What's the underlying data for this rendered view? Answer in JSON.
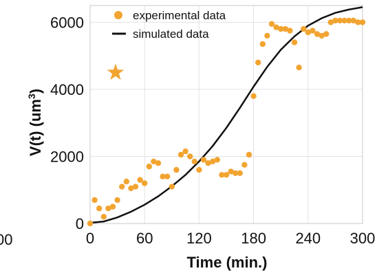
{
  "chart_data": {
    "type": "scatter",
    "xlabel": "Time (min.)",
    "ylabel": "V(t) (um",
    "ylabel_superscript": "3",
    "ylabel_close": ")",
    "xlim": [
      0,
      300
    ],
    "ylim": [
      0,
      6500
    ],
    "x_ticks": [
      0,
      60,
      120,
      180,
      240,
      300
    ],
    "y_ticks": [
      0,
      2000,
      4000,
      6000
    ],
    "grid": true,
    "legend_position": "top-right",
    "left_edge_fragment": "00",
    "colors": {
      "experimental": "#f2a431",
      "simulated": "#111111"
    },
    "series": [
      {
        "name": "experimental data",
        "kind": "points",
        "x": [
          0,
          5,
          10,
          15,
          20,
          25,
          30,
          35,
          40,
          45,
          50,
          55,
          60,
          65,
          70,
          75,
          80,
          85,
          90,
          95,
          100,
          105,
          110,
          115,
          120,
          125,
          130,
          135,
          140,
          145,
          150,
          155,
          160,
          165,
          170,
          175,
          180,
          185,
          190,
          195,
          200,
          205,
          210,
          215,
          220,
          225,
          230,
          235,
          240,
          245,
          250,
          255,
          260,
          265,
          270,
          275,
          280,
          285,
          290,
          295,
          300
        ],
        "y": [
          0,
          700,
          450,
          200,
          450,
          500,
          700,
          1100,
          1250,
          1050,
          1100,
          1300,
          1200,
          1700,
          1850,
          1800,
          1400,
          1400,
          1100,
          1600,
          2050,
          2150,
          2000,
          1850,
          1600,
          1900,
          1800,
          1850,
          1900,
          1450,
          1450,
          1550,
          1500,
          1500,
          1750,
          2050,
          3800,
          4800,
          5350,
          5600,
          5950,
          5850,
          5800,
          5800,
          5750,
          5400,
          4650,
          5800,
          5700,
          5750,
          5650,
          5600,
          5650,
          6000,
          6050,
          6050,
          6050,
          6050,
          6050,
          6000,
          6000
        ]
      },
      {
        "name": "simulated data",
        "kind": "line",
        "x": [
          0,
          15,
          30,
          45,
          60,
          75,
          90,
          105,
          120,
          135,
          150,
          165,
          180,
          195,
          210,
          225,
          240,
          255,
          270,
          285,
          300
        ],
        "y": [
          20,
          60,
          180,
          350,
          560,
          810,
          1110,
          1450,
          1850,
          2310,
          2850,
          3450,
          4080,
          4670,
          5180,
          5580,
          5900,
          6120,
          6280,
          6380,
          6450
        ]
      }
    ],
    "annotations": [
      {
        "type": "star",
        "x": 28,
        "y": 4500,
        "color": "#f2a431"
      }
    ]
  }
}
